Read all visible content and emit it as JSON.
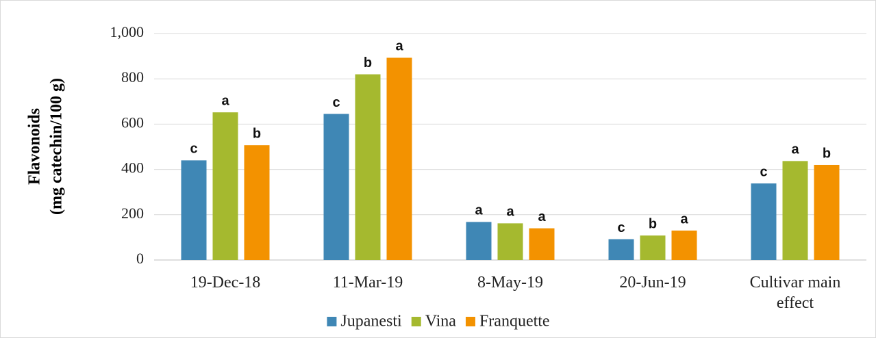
{
  "chart_data": {
    "type": "bar",
    "ylabel": [
      "Flavonoids",
      "(mg catechin/100 g)"
    ],
    "categories": [
      "19-Dec-18",
      "11-Mar-19",
      "8-May-19",
      "20-Jun-19",
      "Cultivar main effect"
    ],
    "series": [
      {
        "name": "Jupanesti",
        "color": "#3f87b5",
        "values": [
          440,
          645,
          168,
          92,
          338
        ],
        "annotations": [
          "c",
          "c",
          "a",
          "c",
          "c"
        ]
      },
      {
        "name": "Vina",
        "color": "#a5b92f",
        "values": [
          652,
          820,
          162,
          108,
          437
        ],
        "annotations": [
          "a",
          "b",
          "a",
          "b",
          "a"
        ]
      },
      {
        "name": "Franquette",
        "color": "#f39200",
        "values": [
          507,
          893,
          140,
          130,
          420
        ],
        "annotations": [
          "b",
          "a",
          "a",
          "a",
          "b"
        ]
      }
    ],
    "ylim": [
      0,
      1000
    ],
    "yticks": [
      0,
      200,
      400,
      600,
      800,
      {
        "value": 1000,
        "label": "1,000"
      }
    ],
    "grid": true,
    "legend": "bottom"
  }
}
